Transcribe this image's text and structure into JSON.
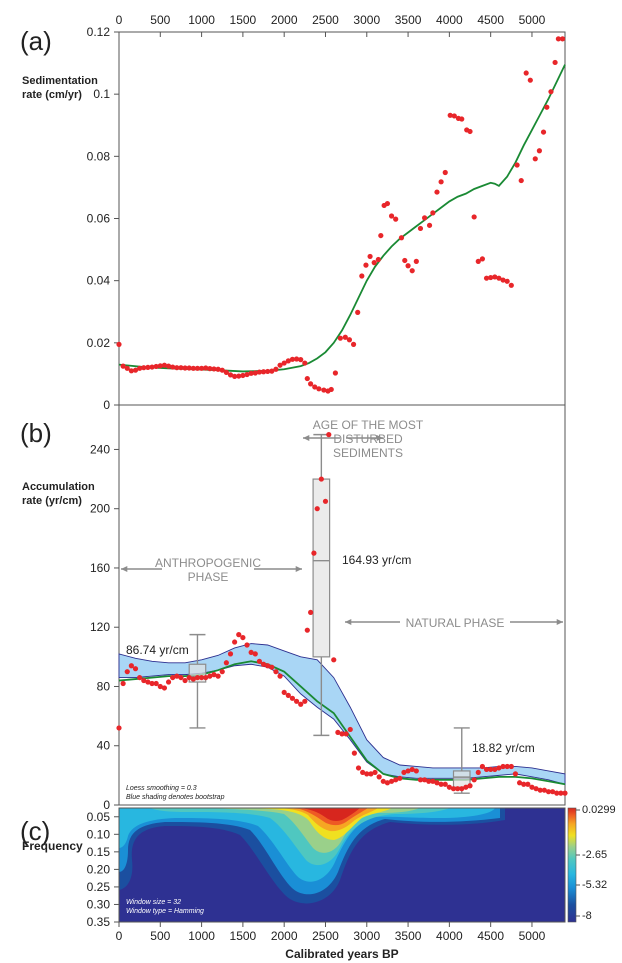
{
  "colors": {
    "points": "#e8262a",
    "smooth": "#1a8a34",
    "band_fill": "#a9d6f5",
    "band_edge": "#2c2f8f",
    "annotation": "#8c8c8c",
    "box_fill": "#e3e3e3"
  },
  "chart_data": [
    {
      "type": "scatter",
      "panel_label": "(a)",
      "ylabel_line1": "Sedimentation",
      "ylabel_line2": "rate (cm/yr)",
      "xlim": [
        0,
        5400
      ],
      "ylim": [
        0,
        0.12
      ],
      "x_ticks": [
        0,
        500,
        1000,
        1500,
        2000,
        2500,
        3000,
        3500,
        4000,
        4500,
        5000
      ],
      "y_ticks": [
        0,
        0.02,
        0.04,
        0.06,
        0.08,
        0.1,
        0.12
      ],
      "y_tick_labels": [
        "0",
        "0.02",
        "0.04",
        "0.06",
        "0.08",
        "0.1",
        "0.12"
      ],
      "points": [
        [
          0,
          0.0195
        ],
        [
          50,
          0.0125
        ],
        [
          100,
          0.0118
        ],
        [
          150,
          0.011
        ],
        [
          200,
          0.0112
        ],
        [
          250,
          0.0118
        ],
        [
          300,
          0.012
        ],
        [
          350,
          0.0121
        ],
        [
          400,
          0.0122
        ],
        [
          450,
          0.0124
        ],
        [
          500,
          0.0126
        ],
        [
          550,
          0.0128
        ],
        [
          600,
          0.0125
        ],
        [
          650,
          0.0122
        ],
        [
          700,
          0.012
        ],
        [
          750,
          0.012
        ],
        [
          800,
          0.0119
        ],
        [
          850,
          0.0119
        ],
        [
          900,
          0.0118
        ],
        [
          950,
          0.0118
        ],
        [
          1000,
          0.0118
        ],
        [
          1050,
          0.0119
        ],
        [
          1100,
          0.0117
        ],
        [
          1150,
          0.0116
        ],
        [
          1200,
          0.0115
        ],
        [
          1250,
          0.0112
        ],
        [
          1300,
          0.0105
        ],
        [
          1350,
          0.0097
        ],
        [
          1400,
          0.0092
        ],
        [
          1450,
          0.0093
        ],
        [
          1500,
          0.0095
        ],
        [
          1550,
          0.0098
        ],
        [
          1600,
          0.0102
        ],
        [
          1650,
          0.0103
        ],
        [
          1700,
          0.0106
        ],
        [
          1750,
          0.0107
        ],
        [
          1800,
          0.0108
        ],
        [
          1850,
          0.0109
        ],
        [
          1900,
          0.0115
        ],
        [
          1950,
          0.0128
        ],
        [
          2000,
          0.0135
        ],
        [
          2050,
          0.0142
        ],
        [
          2100,
          0.0147
        ],
        [
          2150,
          0.0148
        ],
        [
          2200,
          0.0146
        ],
        [
          2250,
          0.0135
        ],
        [
          2280,
          0.0085
        ],
        [
          2320,
          0.0068
        ],
        [
          2370,
          0.0058
        ],
        [
          2420,
          0.0052
        ],
        [
          2480,
          0.0048
        ],
        [
          2530,
          0.0045
        ],
        [
          2570,
          0.005
        ],
        [
          2620,
          0.0103
        ],
        [
          2680,
          0.0215
        ],
        [
          2740,
          0.0218
        ],
        [
          2790,
          0.021
        ],
        [
          2840,
          0.0195
        ],
        [
          2890,
          0.0298
        ],
        [
          2940,
          0.0415
        ],
        [
          2990,
          0.045
        ],
        [
          3040,
          0.0478
        ],
        [
          3090,
          0.0458
        ],
        [
          3140,
          0.0468
        ],
        [
          3170,
          0.0545
        ],
        [
          3210,
          0.0642
        ],
        [
          3250,
          0.0648
        ],
        [
          3300,
          0.0608
        ],
        [
          3350,
          0.0598
        ],
        [
          3420,
          0.0538
        ],
        [
          3460,
          0.0465
        ],
        [
          3500,
          0.0448
        ],
        [
          3550,
          0.0432
        ],
        [
          3600,
          0.0462
        ],
        [
          3650,
          0.0568
        ],
        [
          3700,
          0.0602
        ],
        [
          3760,
          0.0578
        ],
        [
          3800,
          0.0618
        ],
        [
          3850,
          0.0685
        ],
        [
          3900,
          0.0718
        ],
        [
          3950,
          0.0748
        ],
        [
          4010,
          0.0932
        ],
        [
          4060,
          0.093
        ],
        [
          4110,
          0.0922
        ],
        [
          4150,
          0.092
        ],
        [
          4210,
          0.0885
        ],
        [
          4250,
          0.088
        ],
        [
          4300,
          0.0605
        ],
        [
          4350,
          0.0462
        ],
        [
          4400,
          0.047
        ],
        [
          4450,
          0.0408
        ],
        [
          4500,
          0.041
        ],
        [
          4550,
          0.0412
        ],
        [
          4600,
          0.0408
        ],
        [
          4650,
          0.0402
        ],
        [
          4700,
          0.0398
        ],
        [
          4750,
          0.0385
        ],
        [
          4820,
          0.0772
        ],
        [
          4870,
          0.0722
        ],
        [
          4930,
          0.1068
        ],
        [
          4980,
          0.1045
        ],
        [
          5040,
          0.0792
        ],
        [
          5090,
          0.0818
        ],
        [
          5140,
          0.0878
        ],
        [
          5180,
          0.0958
        ],
        [
          5230,
          0.1008
        ],
        [
          5280,
          0.1102
        ],
        [
          5320,
          0.1178
        ],
        [
          5370,
          0.1178
        ]
      ],
      "smooth_x": [
        0,
        300,
        600,
        900,
        1200,
        1500,
        1800,
        2000,
        2200,
        2300,
        2400,
        2500,
        2600,
        2700,
        2800,
        2900,
        3000,
        3100,
        3200,
        3300,
        3400,
        3500,
        3600,
        3700,
        3800,
        3900,
        4000,
        4100,
        4200,
        4300,
        4400,
        4500,
        4550,
        4600,
        4700,
        4800,
        4900,
        5000,
        5100,
        5200,
        5300,
        5400
      ],
      "smooth_y": [
        0.013,
        0.0122,
        0.0118,
        0.0115,
        0.0112,
        0.0108,
        0.011,
        0.0115,
        0.0125,
        0.0135,
        0.015,
        0.017,
        0.02,
        0.024,
        0.029,
        0.0345,
        0.04,
        0.0445,
        0.048,
        0.051,
        0.0535,
        0.0555,
        0.0575,
        0.0595,
        0.0615,
        0.0635,
        0.0655,
        0.067,
        0.068,
        0.0695,
        0.0705,
        0.0715,
        0.0712,
        0.0705,
        0.0735,
        0.078,
        0.0835,
        0.0885,
        0.0935,
        0.0985,
        0.104,
        0.1095
      ]
    },
    {
      "type": "scatter",
      "panel_label": "(b)",
      "ylabel_line1": "Accumulation",
      "ylabel_line2": "rate (yr/cm)",
      "xlim": [
        0,
        5400
      ],
      "ylim": [
        0,
        270
      ],
      "y_ticks": [
        0,
        40,
        80,
        120,
        160,
        200,
        240
      ],
      "y_tick_labels": [
        "0",
        "40",
        "80",
        "120",
        "160",
        "200",
        "240"
      ],
      "points": [
        [
          0,
          52
        ],
        [
          50,
          82
        ],
        [
          100,
          90
        ],
        [
          150,
          94
        ],
        [
          200,
          92
        ],
        [
          250,
          86
        ],
        [
          300,
          84
        ],
        [
          350,
          83
        ],
        [
          400,
          82
        ],
        [
          450,
          82
        ],
        [
          500,
          80
        ],
        [
          550,
          79
        ],
        [
          600,
          83
        ],
        [
          650,
          86
        ],
        [
          700,
          87
        ],
        [
          750,
          86
        ],
        [
          800,
          84
        ],
        [
          850,
          86
        ],
        [
          900,
          85
        ],
        [
          950,
          86
        ],
        [
          1000,
          86
        ],
        [
          1050,
          86
        ],
        [
          1100,
          87
        ],
        [
          1150,
          88
        ],
        [
          1200,
          87
        ],
        [
          1250,
          90
        ],
        [
          1300,
          96
        ],
        [
          1350,
          102
        ],
        [
          1400,
          110
        ],
        [
          1450,
          115
        ],
        [
          1500,
          113
        ],
        [
          1550,
          108
        ],
        [
          1600,
          103
        ],
        [
          1650,
          102
        ],
        [
          1700,
          97
        ],
        [
          1750,
          95
        ],
        [
          1800,
          94
        ],
        [
          1850,
          93
        ],
        [
          1900,
          90
        ],
        [
          1950,
          87
        ],
        [
          2000,
          76
        ],
        [
          2050,
          74
        ],
        [
          2100,
          72
        ],
        [
          2150,
          70
        ],
        [
          2200,
          68
        ],
        [
          2250,
          70
        ],
        [
          2280,
          118
        ],
        [
          2320,
          130
        ],
        [
          2360,
          170
        ],
        [
          2400,
          200
        ],
        [
          2450,
          220
        ],
        [
          2500,
          205
        ],
        [
          2540,
          250
        ],
        [
          2600,
          98
        ],
        [
          2650,
          49
        ],
        [
          2700,
          48
        ],
        [
          2750,
          48
        ],
        [
          2800,
          51
        ],
        [
          2850,
          35
        ],
        [
          2900,
          25
        ],
        [
          2950,
          22
        ],
        [
          3000,
          21
        ],
        [
          3050,
          21
        ],
        [
          3100,
          22
        ],
        [
          3150,
          19
        ],
        [
          3200,
          16
        ],
        [
          3250,
          15
        ],
        [
          3300,
          16
        ],
        [
          3350,
          17
        ],
        [
          3400,
          18
        ],
        [
          3450,
          22
        ],
        [
          3500,
          23
        ],
        [
          3550,
          24
        ],
        [
          3600,
          23
        ],
        [
          3650,
          17
        ],
        [
          3700,
          17
        ],
        [
          3750,
          16
        ],
        [
          3800,
          16
        ],
        [
          3850,
          15
        ],
        [
          3900,
          14
        ],
        [
          3950,
          14
        ],
        [
          4000,
          12
        ],
        [
          4050,
          11
        ],
        [
          4100,
          11
        ],
        [
          4150,
          11
        ],
        [
          4200,
          12
        ],
        [
          4250,
          13
        ],
        [
          4300,
          17
        ],
        [
          4350,
          22
        ],
        [
          4400,
          26
        ],
        [
          4450,
          24
        ],
        [
          4500,
          24
        ],
        [
          4550,
          24
        ],
        [
          4600,
          25
        ],
        [
          4650,
          26
        ],
        [
          4700,
          26
        ],
        [
          4750,
          26
        ],
        [
          4800,
          21
        ],
        [
          4850,
          15
        ],
        [
          4900,
          14
        ],
        [
          4950,
          14
        ],
        [
          5000,
          12
        ],
        [
          5050,
          11
        ],
        [
          5100,
          10
        ],
        [
          5150,
          10
        ],
        [
          5200,
          9
        ],
        [
          5250,
          9
        ],
        [
          5300,
          8
        ],
        [
          5350,
          8
        ],
        [
          5400,
          8
        ]
      ],
      "smooth_x": [
        0,
        200,
        400,
        600,
        800,
        1000,
        1200,
        1400,
        1600,
        1800,
        2000,
        2200,
        2400,
        2600,
        2800,
        3000,
        3200,
        3400,
        3600,
        3800,
        4000,
        4200,
        4400,
        4600,
        4800,
        5000,
        5200,
        5400
      ],
      "smooth_y": [
        84,
        85,
        86,
        87,
        87,
        88,
        91,
        95,
        97,
        95,
        90,
        80,
        70,
        62,
        46,
        30,
        21,
        18,
        17,
        17,
        17,
        17,
        18,
        19,
        19,
        18,
        16,
        14
      ],
      "band_x": [
        0,
        200,
        400,
        600,
        800,
        1000,
        1200,
        1400,
        1600,
        1800,
        2000,
        2200,
        2400,
        2600,
        2800,
        3000,
        3200,
        3400,
        3600,
        3800,
        4000,
        4200,
        4400,
        4600,
        4800,
        5000,
        5200,
        5400
      ],
      "band_upper": [
        102,
        99,
        97,
        96,
        96,
        98,
        101,
        106,
        109,
        108,
        104,
        100,
        98,
        86,
        66,
        44,
        32,
        27,
        26,
        25,
        25,
        25,
        25,
        26,
        26,
        25,
        23,
        21
      ],
      "band_lower": [
        86,
        86,
        87,
        88,
        88,
        89,
        91,
        94,
        95,
        93,
        87,
        75,
        66,
        58,
        44,
        29,
        21,
        19,
        18,
        18,
        18,
        18,
        19,
        20,
        21,
        19,
        17,
        14
      ],
      "boxes": [
        {
          "x": 950,
          "whisker_low": 52,
          "q1": 83,
          "median": 86.74,
          "q3": 95,
          "whisker_high": 115,
          "half_width": 200
        },
        {
          "x": 2450,
          "whisker_low": 47,
          "q1": 100,
          "median": 164.93,
          "q3": 220,
          "whisker_high": 250,
          "half_width": 200
        },
        {
          "x": 4150,
          "whisker_low": 8,
          "q1": 12,
          "median": 18.82,
          "q3": 23,
          "whisker_high": 52,
          "half_width": 200
        }
      ],
      "annotations": {
        "box1_label": "86.74 yr/cm",
        "box2_label": "164.93 yr/cm",
        "box3_label": "18.82 yr/cm",
        "disturbed_line1": "AGE OF THE MOST",
        "disturbed_line2": "DISTURBED",
        "disturbed_line3": "SEDIMENTS",
        "anthro_line1": "ANTHROPOGENIC",
        "anthro_line2": "PHASE",
        "natural": "NATURAL PHASE",
        "note_line1": "Loess smoothing = 0.3",
        "note_line2": "Blue shading denotes bootstrap"
      }
    },
    {
      "type": "heatmap",
      "panel_label": "(c)",
      "ylabel": "Frequency",
      "xlabel": "Calibrated years BP",
      "xlim": [
        0,
        5400
      ],
      "ylim": [
        0.35,
        0.025
      ],
      "x_ticks": [
        0,
        500,
        1000,
        1500,
        2000,
        2500,
        3000,
        3500,
        4000,
        4500,
        5000
      ],
      "y_ticks": [
        0.05,
        0.1,
        0.15,
        0.2,
        0.25,
        0.3,
        0.35
      ],
      "y_tick_labels": [
        "0.05",
        "0.10",
        "0.15",
        "0.20",
        "0.25",
        "0.30",
        "0.35"
      ],
      "colorbar_labels": [
        "0.0299",
        "-2.65",
        "-5.32",
        "-8"
      ],
      "note_line1": "Window size = 32",
      "note_line2": "Window type = Hamming"
    }
  ]
}
